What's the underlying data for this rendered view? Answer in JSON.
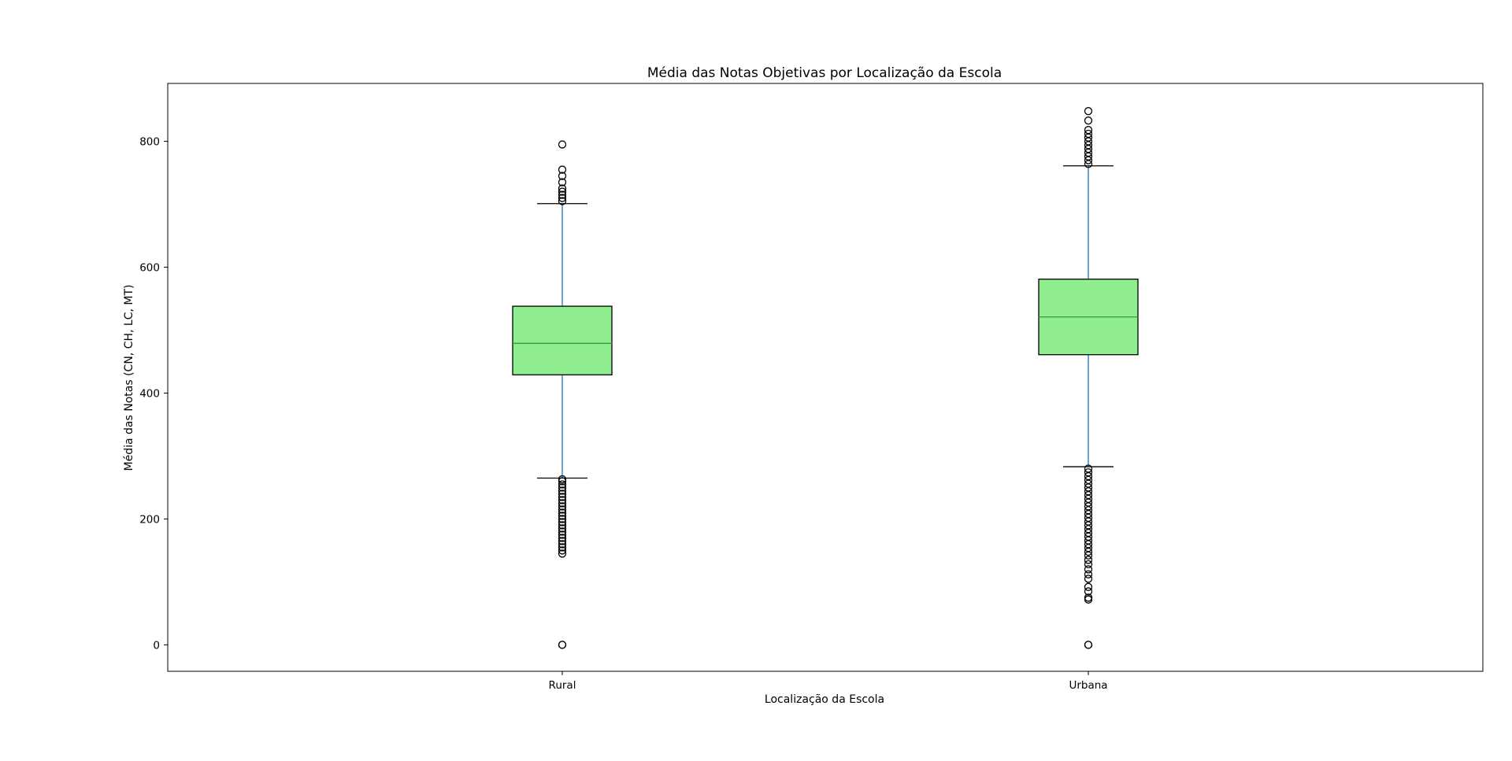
{
  "chart_data": {
    "type": "box",
    "title": "Média das Notas Objetivas por Localização da Escola",
    "xlabel": "Localização da Escola",
    "ylabel": "Média das Notas (CN, CH, LC, MT)",
    "categories": [
      "Rural",
      "Urbana"
    ],
    "ylim": [
      -42,
      892
    ],
    "yticks": [
      0,
      200,
      400,
      600,
      800
    ],
    "grid": false,
    "colors": {
      "box_fill": "#90ee90",
      "box_edge": "#000000",
      "whisker": "#1f77b4",
      "median": "#2ca02c",
      "flier_edge": "#000000"
    },
    "boxes": [
      {
        "category": "Rural",
        "whisker_low": 265,
        "q1": 429,
        "median": 479,
        "q3": 538,
        "whisker_high": 701,
        "outliers": [
          0,
          0,
          145,
          150,
          155,
          160,
          165,
          170,
          175,
          180,
          185,
          190,
          195,
          200,
          205,
          210,
          215,
          220,
          225,
          230,
          235,
          240,
          245,
          250,
          255,
          260,
          263,
          705,
          710,
          715,
          720,
          725,
          735,
          745,
          755,
          795
        ]
      },
      {
        "category": "Urbana",
        "whisker_low": 283,
        "q1": 461,
        "median": 521,
        "q3": 581,
        "whisker_high": 761,
        "outliers": [
          0,
          0,
          72,
          75,
          85,
          92,
          105,
          112,
          120,
          128,
          135,
          142,
          148,
          154,
          160,
          166,
          172,
          178,
          184,
          190,
          196,
          202,
          208,
          214,
          220,
          226,
          232,
          238,
          244,
          250,
          256,
          262,
          268,
          274,
          280,
          764,
          770,
          776,
          782,
          788,
          794,
          800,
          806,
          812,
          818,
          833,
          848
        ]
      }
    ]
  }
}
